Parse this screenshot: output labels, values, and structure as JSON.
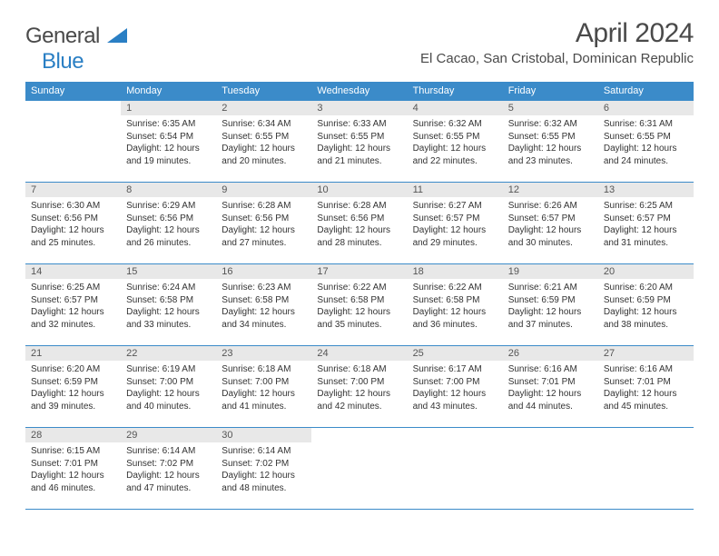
{
  "logo": {
    "text1": "General",
    "text2": "Blue"
  },
  "header": {
    "title": "April 2024",
    "location": "El Cacao, San Cristobal, Dominican Republic"
  },
  "colors": {
    "header_bg": "#3b8bc9",
    "header_fg": "#ffffff",
    "daynum_bg": "#e8e8e8",
    "row_border": "#3b8bc9"
  },
  "weekdays": [
    "Sunday",
    "Monday",
    "Tuesday",
    "Wednesday",
    "Thursday",
    "Friday",
    "Saturday"
  ],
  "weeks": [
    [
      null,
      {
        "n": "1",
        "sr": "6:35 AM",
        "ss": "6:54 PM",
        "dl": "12 hours and 19 minutes."
      },
      {
        "n": "2",
        "sr": "6:34 AM",
        "ss": "6:55 PM",
        "dl": "12 hours and 20 minutes."
      },
      {
        "n": "3",
        "sr": "6:33 AM",
        "ss": "6:55 PM",
        "dl": "12 hours and 21 minutes."
      },
      {
        "n": "4",
        "sr": "6:32 AM",
        "ss": "6:55 PM",
        "dl": "12 hours and 22 minutes."
      },
      {
        "n": "5",
        "sr": "6:32 AM",
        "ss": "6:55 PM",
        "dl": "12 hours and 23 minutes."
      },
      {
        "n": "6",
        "sr": "6:31 AM",
        "ss": "6:55 PM",
        "dl": "12 hours and 24 minutes."
      }
    ],
    [
      {
        "n": "7",
        "sr": "6:30 AM",
        "ss": "6:56 PM",
        "dl": "12 hours and 25 minutes."
      },
      {
        "n": "8",
        "sr": "6:29 AM",
        "ss": "6:56 PM",
        "dl": "12 hours and 26 minutes."
      },
      {
        "n": "9",
        "sr": "6:28 AM",
        "ss": "6:56 PM",
        "dl": "12 hours and 27 minutes."
      },
      {
        "n": "10",
        "sr": "6:28 AM",
        "ss": "6:56 PM",
        "dl": "12 hours and 28 minutes."
      },
      {
        "n": "11",
        "sr": "6:27 AM",
        "ss": "6:57 PM",
        "dl": "12 hours and 29 minutes."
      },
      {
        "n": "12",
        "sr": "6:26 AM",
        "ss": "6:57 PM",
        "dl": "12 hours and 30 minutes."
      },
      {
        "n": "13",
        "sr": "6:25 AM",
        "ss": "6:57 PM",
        "dl": "12 hours and 31 minutes."
      }
    ],
    [
      {
        "n": "14",
        "sr": "6:25 AM",
        "ss": "6:57 PM",
        "dl": "12 hours and 32 minutes."
      },
      {
        "n": "15",
        "sr": "6:24 AM",
        "ss": "6:58 PM",
        "dl": "12 hours and 33 minutes."
      },
      {
        "n": "16",
        "sr": "6:23 AM",
        "ss": "6:58 PM",
        "dl": "12 hours and 34 minutes."
      },
      {
        "n": "17",
        "sr": "6:22 AM",
        "ss": "6:58 PM",
        "dl": "12 hours and 35 minutes."
      },
      {
        "n": "18",
        "sr": "6:22 AM",
        "ss": "6:58 PM",
        "dl": "12 hours and 36 minutes."
      },
      {
        "n": "19",
        "sr": "6:21 AM",
        "ss": "6:59 PM",
        "dl": "12 hours and 37 minutes."
      },
      {
        "n": "20",
        "sr": "6:20 AM",
        "ss": "6:59 PM",
        "dl": "12 hours and 38 minutes."
      }
    ],
    [
      {
        "n": "21",
        "sr": "6:20 AM",
        "ss": "6:59 PM",
        "dl": "12 hours and 39 minutes."
      },
      {
        "n": "22",
        "sr": "6:19 AM",
        "ss": "7:00 PM",
        "dl": "12 hours and 40 minutes."
      },
      {
        "n": "23",
        "sr": "6:18 AM",
        "ss": "7:00 PM",
        "dl": "12 hours and 41 minutes."
      },
      {
        "n": "24",
        "sr": "6:18 AM",
        "ss": "7:00 PM",
        "dl": "12 hours and 42 minutes."
      },
      {
        "n": "25",
        "sr": "6:17 AM",
        "ss": "7:00 PM",
        "dl": "12 hours and 43 minutes."
      },
      {
        "n": "26",
        "sr": "6:16 AM",
        "ss": "7:01 PM",
        "dl": "12 hours and 44 minutes."
      },
      {
        "n": "27",
        "sr": "6:16 AM",
        "ss": "7:01 PM",
        "dl": "12 hours and 45 minutes."
      }
    ],
    [
      {
        "n": "28",
        "sr": "6:15 AM",
        "ss": "7:01 PM",
        "dl": "12 hours and 46 minutes."
      },
      {
        "n": "29",
        "sr": "6:14 AM",
        "ss": "7:02 PM",
        "dl": "12 hours and 47 minutes."
      },
      {
        "n": "30",
        "sr": "6:14 AM",
        "ss": "7:02 PM",
        "dl": "12 hours and 48 minutes."
      },
      null,
      null,
      null,
      null
    ]
  ],
  "labels": {
    "sunrise": "Sunrise:",
    "sunset": "Sunset:",
    "daylight": "Daylight:"
  }
}
